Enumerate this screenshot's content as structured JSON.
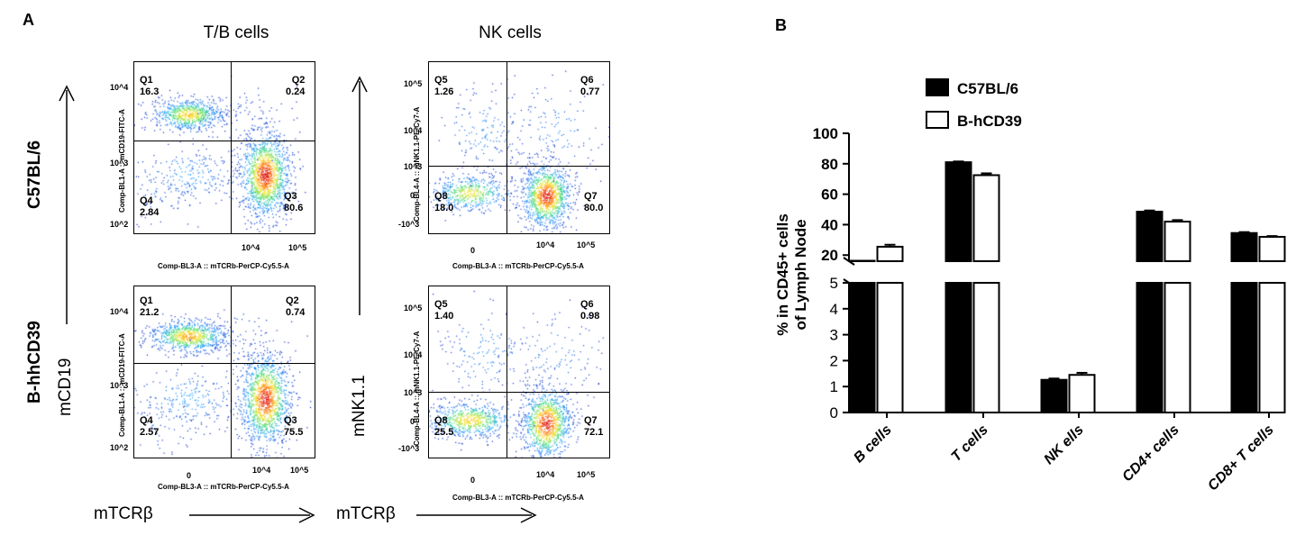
{
  "panels": {
    "a": "A",
    "b": "B"
  },
  "facs": {
    "col_titles": [
      "T/B cells",
      "NK cells"
    ],
    "row_labels": [
      "C57BL/6",
      "B-hhCD39"
    ],
    "y_words": [
      "mCD19",
      "mNK1.1"
    ],
    "x_words": [
      "mTCRβ",
      "mTCRβ"
    ],
    "x_axis_label": "Comp-BL3-A :: mTCRb-PerCP-Cy5.5-A",
    "tb_y_axis_label": "Comp-BL1-A :: mCD19-FITC-A",
    "nk_y_axis_label": "Comp-BL4-A :: mNK1.1-PE-Cy7-A",
    "tb_y_ticks": [
      "10^4",
      "10^3",
      "10^2"
    ],
    "nk_y_ticks": [
      "10^5",
      "10^4",
      "10^3",
      "0",
      "-10^3"
    ],
    "x_ticks": [
      "0",
      "10^4",
      "10^5"
    ],
    "plots": [
      {
        "id": "tb-c57",
        "quadrants": [
          {
            "name": "Q1",
            "value": "16.3"
          },
          {
            "name": "Q2",
            "value": "0.24"
          },
          {
            "name": "Q3",
            "value": "80.6"
          },
          {
            "name": "Q4",
            "value": "2.84"
          }
        ]
      },
      {
        "id": "nk-c57",
        "quadrants": [
          {
            "name": "Q5",
            "value": "1.26"
          },
          {
            "name": "Q6",
            "value": "0.77"
          },
          {
            "name": "Q7",
            "value": "80.0"
          },
          {
            "name": "Q8",
            "value": "18.0"
          }
        ]
      },
      {
        "id": "tb-hcd39",
        "quadrants": [
          {
            "name": "Q1",
            "value": "21.2"
          },
          {
            "name": "Q2",
            "value": "0.74"
          },
          {
            "name": "Q3",
            "value": "75.5"
          },
          {
            "name": "Q4",
            "value": "2.57"
          }
        ]
      },
      {
        "id": "nk-hcd39",
        "quadrants": [
          {
            "name": "Q5",
            "value": "1.40"
          },
          {
            "name": "Q6",
            "value": "0.98"
          },
          {
            "name": "Q7",
            "value": "72.1"
          },
          {
            "name": "Q8",
            "value": "25.5"
          }
        ]
      }
    ]
  },
  "chart_data": {
    "type": "bar",
    "ylabel_lines": [
      "% in CD45+ cells",
      "of Lymph Node"
    ],
    "categories": [
      "B cells",
      "T cells",
      "NK ells",
      "CD4+ cells",
      "CD8+ T cells"
    ],
    "series": [
      {
        "name": "C57BL/6",
        "values": [
          16.3,
          81.0,
          1.26,
          48.5,
          34.5
        ],
        "errors": [
          0.0,
          0.5,
          0.05,
          0.8,
          0.6
        ],
        "fill": "#000000"
      },
      {
        "name": "B-hCD39",
        "values": [
          25.5,
          72.5,
          1.45,
          42.0,
          32.0
        ],
        "errors": [
          1.3,
          1.2,
          0.08,
          1.0,
          0.5
        ],
        "fill": "#ffffff"
      }
    ],
    "y_axis_broken": true,
    "lower_ylim": [
      0,
      5
    ],
    "lower_ticks": [
      "0",
      "1",
      "2",
      "3",
      "4",
      "5"
    ],
    "upper_ylim": [
      16,
      100
    ],
    "upper_ticks": [
      "20",
      "40",
      "60",
      "80",
      "100"
    ],
    "legend_position": "top-left"
  }
}
